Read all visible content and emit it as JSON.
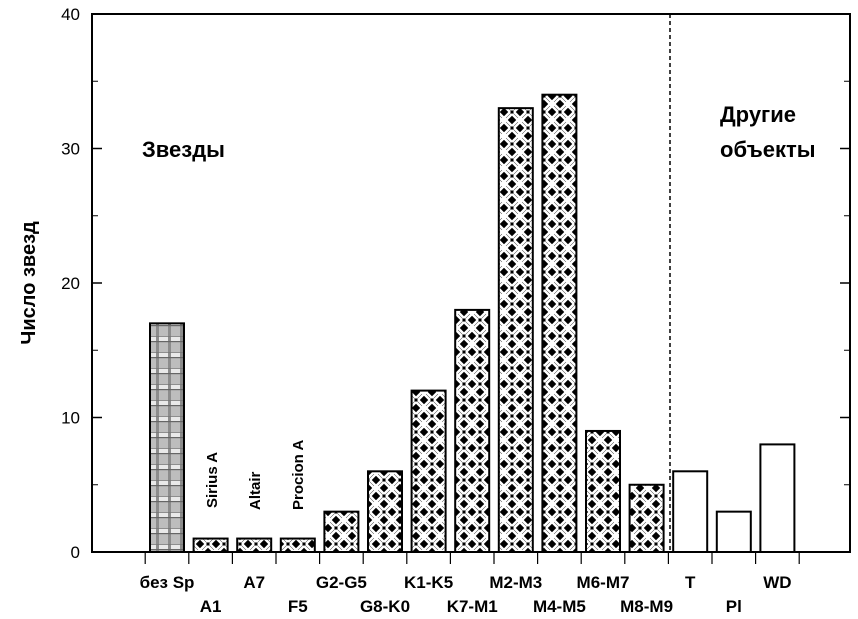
{
  "chart_data": {
    "type": "bar",
    "ylabel": "Число звезд",
    "ylim": [
      0,
      40
    ],
    "yticks": [
      0,
      10,
      20,
      30,
      40
    ],
    "grid": false,
    "categories": [
      "без Sp",
      "A1",
      "A7",
      "F5",
      "G2-G5",
      "G8-K0",
      "K1-K5",
      "K7-M1",
      "M2-M3",
      "M4-M5",
      "M6-M7",
      "M8-M9",
      "T",
      "Pl",
      "WD"
    ],
    "values": [
      17,
      1,
      1,
      1,
      3,
      6,
      12,
      18,
      33,
      34,
      9,
      5,
      6,
      3,
      8
    ],
    "fills": [
      "grid",
      "weave",
      "weave",
      "weave",
      "weave",
      "weave",
      "weave",
      "weave",
      "weave",
      "weave",
      "weave",
      "weave",
      "empty",
      "empty",
      "empty"
    ],
    "annotations": {
      "stars_group": "Звезды",
      "other_group_line1": "Другие",
      "other_group_line2": "объекты",
      "vertical_labels": [
        "Sirius A",
        "Altair",
        "Procion A"
      ]
    }
  }
}
